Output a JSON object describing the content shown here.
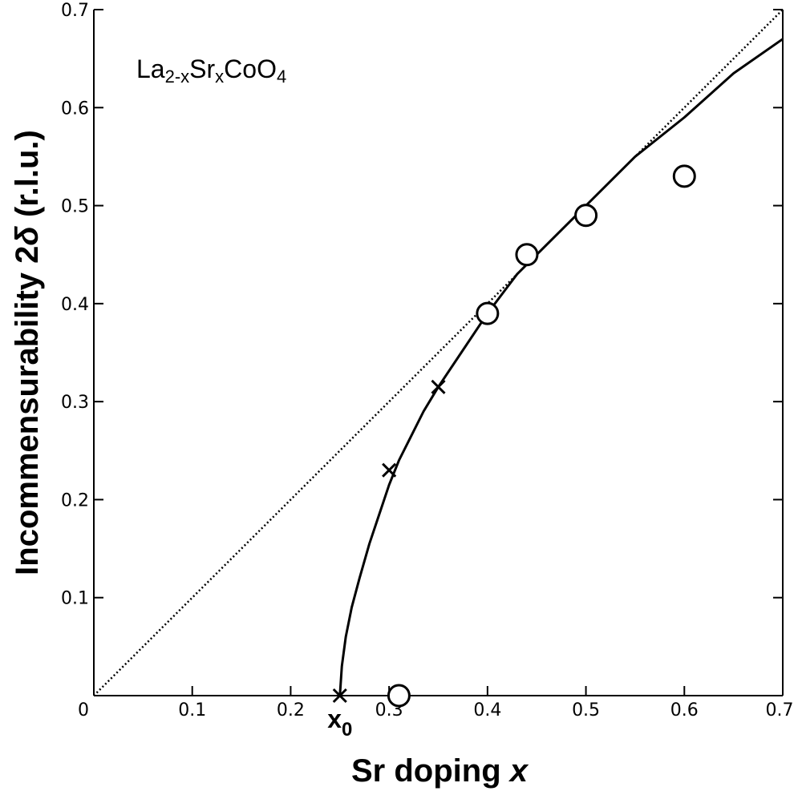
{
  "chart_data": {
    "type": "scatter",
    "title": "",
    "xlabel": "Sr doping x",
    "ylabel": "Incommensurability 2δ (r.l.u.)",
    "xlim": [
      0,
      0.7
    ],
    "ylim": [
      0,
      0.7
    ],
    "x_ticks": [
      0,
      0.1,
      0.2,
      0.3,
      0.4,
      0.5,
      0.6,
      0.7
    ],
    "x_tick_labels": [
      "0",
      "0.1",
      "0.2",
      "0.3",
      "0.4",
      "0.5",
      "0.6",
      "0.7"
    ],
    "y_ticks": [
      0.1,
      0.2,
      0.3,
      0.4,
      0.5,
      0.6,
      0.7
    ],
    "y_tick_labels": [
      "0.1",
      "0.2",
      "0.3",
      "0.4",
      "0.5",
      "0.6",
      "0.7"
    ],
    "grid": false,
    "legend": "none",
    "annotation": {
      "compound": "La2-xSrxCoO4",
      "parts": [
        {
          "text": "La",
          "sub": false
        },
        {
          "text": "2-x",
          "sub": true
        },
        {
          "text": "Sr",
          "sub": false
        },
        {
          "text": "x",
          "sub": true
        },
        {
          "text": "CoO",
          "sub": false
        },
        {
          "text": "4",
          "sub": true
        }
      ]
    },
    "x0_label": {
      "base": "x",
      "sub": "0",
      "x": 0.25
    },
    "series": [
      {
        "kind": "open-circles",
        "x": [
          0.31,
          0.4,
          0.44,
          0.5,
          0.6
        ],
        "y": [
          0.0,
          0.39,
          0.45,
          0.49,
          0.53
        ]
      },
      {
        "kind": "crosses",
        "x": [
          0.25,
          0.3,
          0.35
        ],
        "y": [
          0.0,
          0.23,
          0.315
        ]
      },
      {
        "kind": "solid-line",
        "x": [
          0.25,
          0.252,
          0.256,
          0.262,
          0.27,
          0.28,
          0.29,
          0.3,
          0.31,
          0.32,
          0.335,
          0.35,
          0.37,
          0.4,
          0.43,
          0.46,
          0.5,
          0.55,
          0.6,
          0.65,
          0.7
        ],
        "y": [
          0.0,
          0.03,
          0.06,
          0.09,
          0.12,
          0.155,
          0.185,
          0.215,
          0.24,
          0.26,
          0.29,
          0.315,
          0.345,
          0.39,
          0.43,
          0.46,
          0.5,
          0.55,
          0.59,
          0.635,
          0.67
        ]
      },
      {
        "kind": "dotted-line",
        "x": [
          0.0,
          0.7
        ],
        "y": [
          0.0,
          0.7
        ]
      }
    ],
    "colors": {
      "ink": "#000000",
      "background": "#ffffff"
    }
  }
}
